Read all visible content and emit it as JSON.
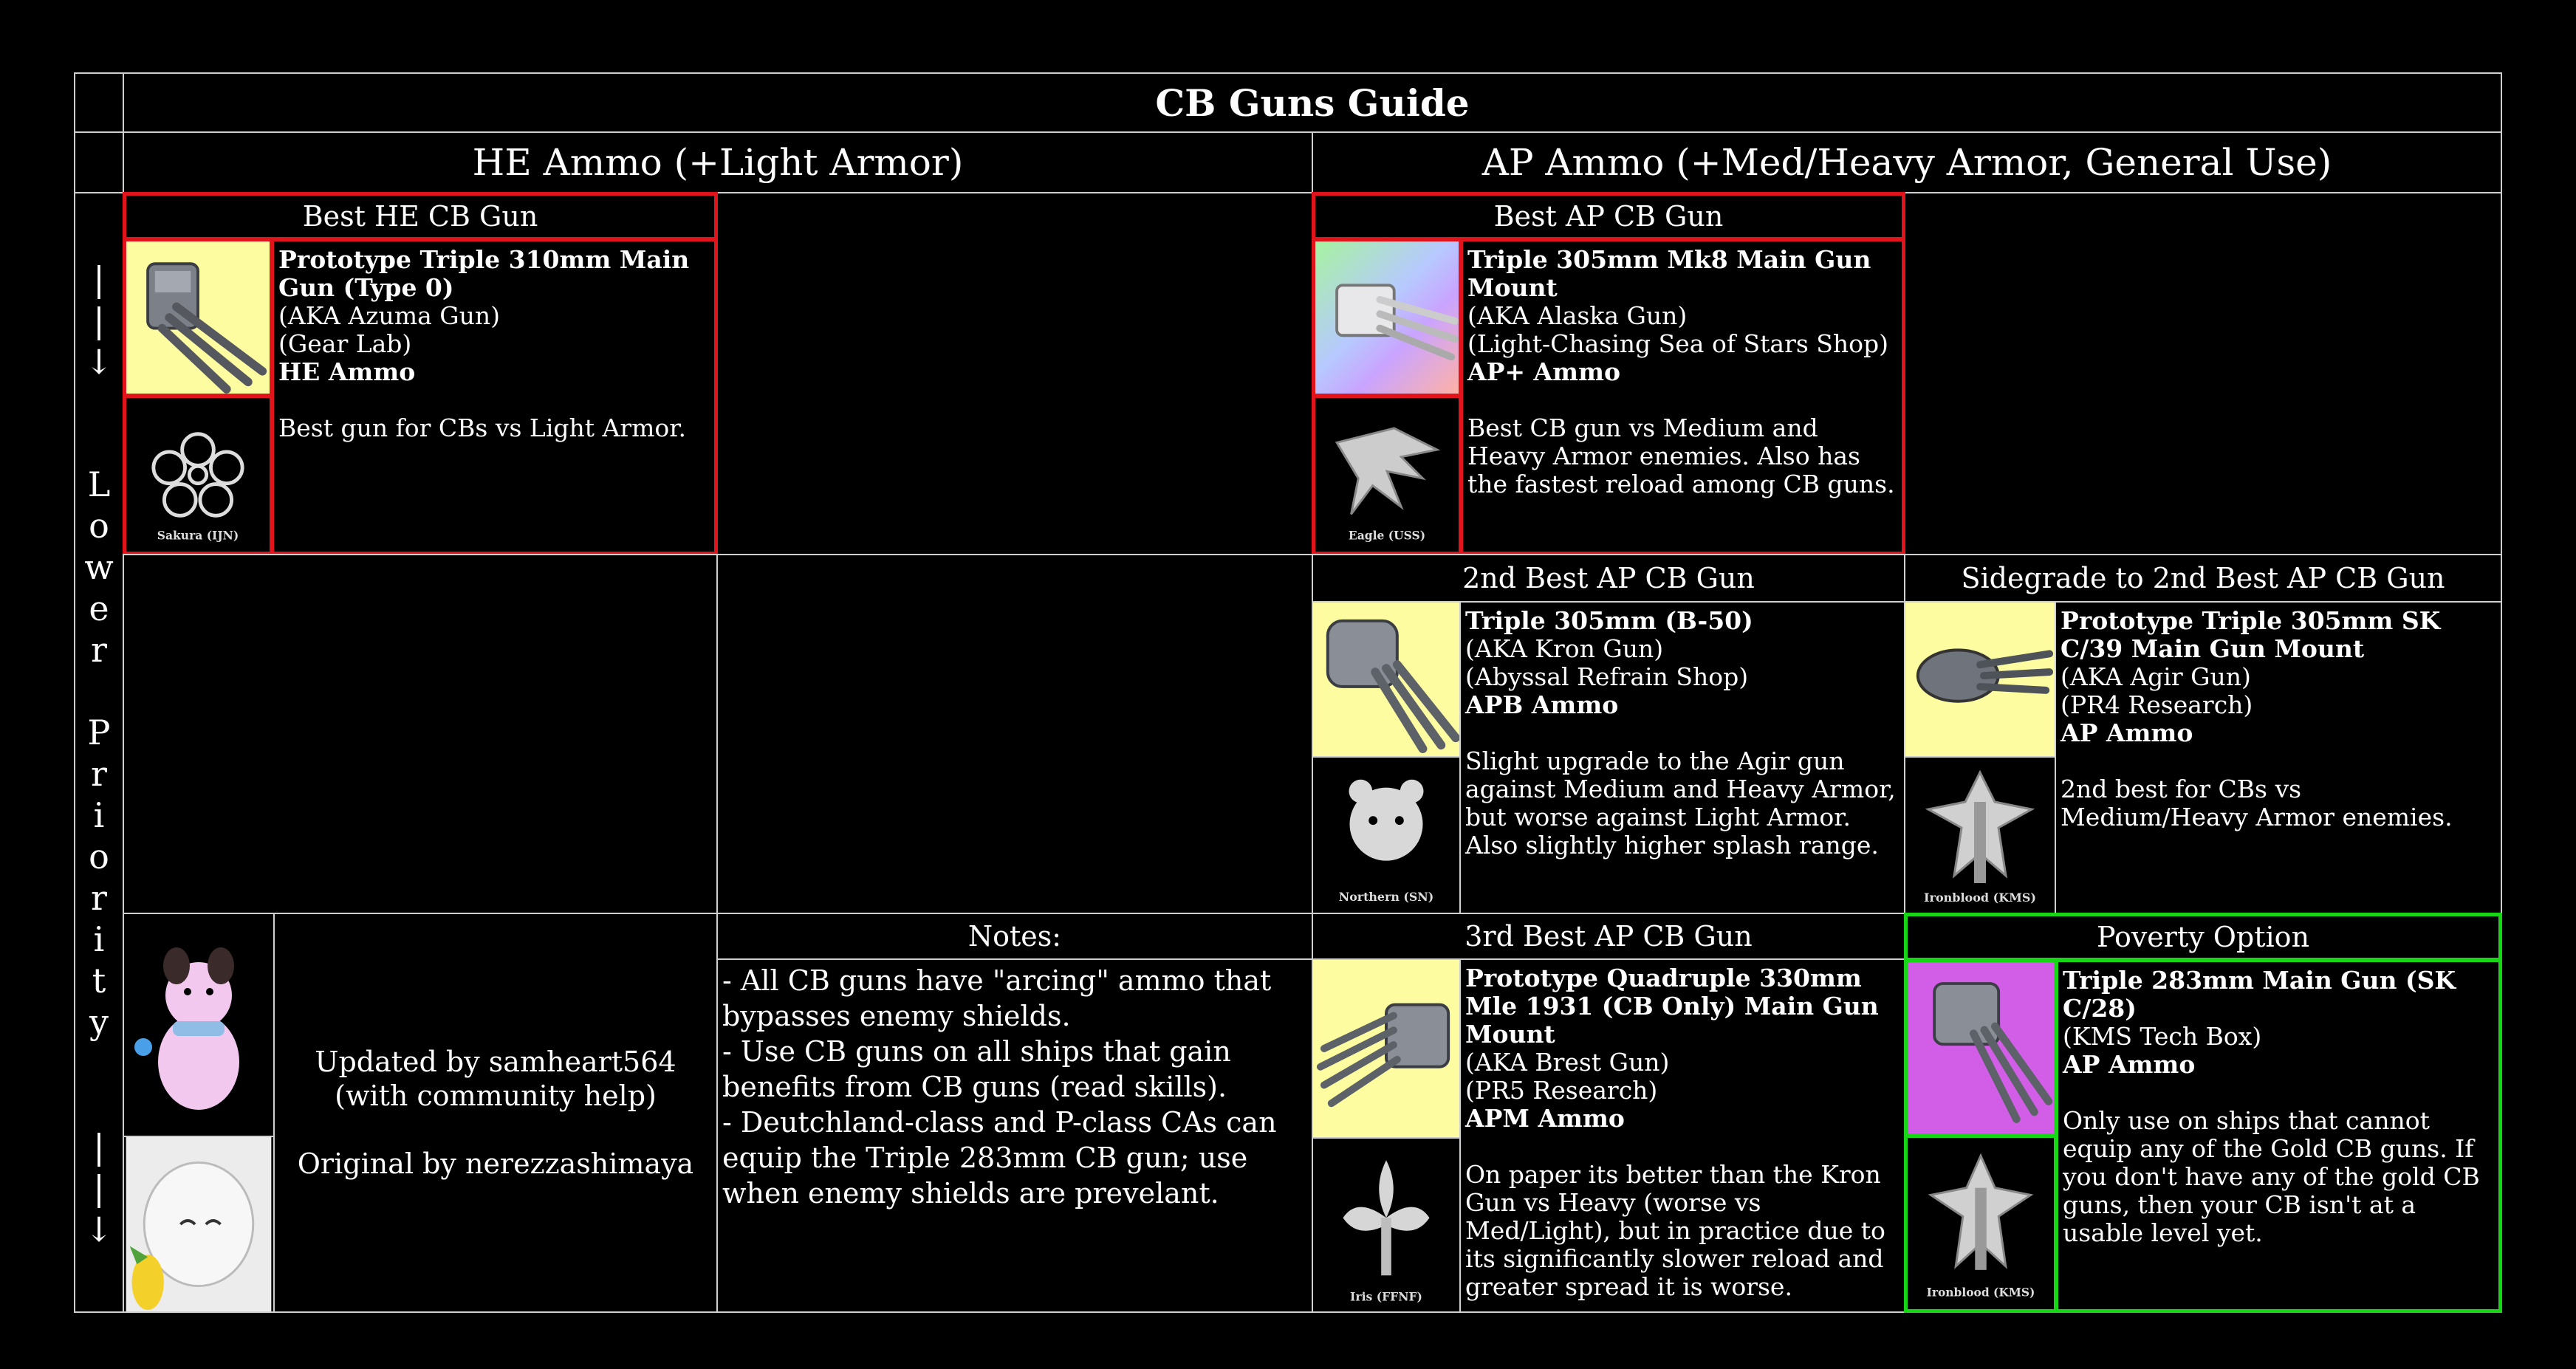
{
  "title": "CB Guns Guide",
  "he_header": "HE Ammo (+Light Armor)",
  "ap_header": "AP Ammo (+Med/Heavy Armor, General Use)",
  "priority": {
    "arrow": "|\n|\n↓",
    "letters": [
      "L",
      "o",
      "w",
      "e",
      "r",
      "",
      "P",
      "r",
      "i",
      "o",
      "r",
      "i",
      "t",
      "y"
    ]
  },
  "best_he": {
    "label": "Best HE CB Gun",
    "name": "Prototype Triple 310mm Main Gun (Type 0)",
    "aka": "(AKA Azuma Gun)",
    "source": "(Gear Lab)",
    "ammo": "HE Ammo",
    "note": "Best gun for CBs vs Light Armor.",
    "faction": "Sakura (IJN)",
    "gun_icon": "triple-gun-icon",
    "faction_icon": "sakura-emblem-icon"
  },
  "best_ap": {
    "label": "Best AP CB Gun",
    "name": "Triple 305mm Mk8 Main Gun Mount",
    "aka": "(AKA Alaska Gun)",
    "source": "(Light-Chasing Sea of Stars Shop)",
    "ammo": "AP+ Ammo",
    "note": "Best CB gun vs Medium and Heavy Armor enemies. Also has the fastest reload among CB guns.",
    "faction": "Eagle (USS)",
    "gun_icon": "triple-gun-icon",
    "faction_icon": "eagle-emblem-icon"
  },
  "second_ap": {
    "label": "2nd Best AP CB Gun",
    "name": "Triple 305mm (B-50)",
    "aka": "(AKA Kron Gun)",
    "source": "(Abyssal Refrain Shop)",
    "ammo": "APB Ammo",
    "note": "Slight upgrade to the Agir gun against Medium and Heavy Armor, but worse against Light Armor. Also slightly higher splash range.",
    "faction": "Northern (SN)",
    "gun_icon": "triple-gun-icon",
    "faction_icon": "bear-emblem-icon"
  },
  "sidegrade": {
    "label": "Sidegrade to 2nd Best AP CB Gun",
    "name": "Prototype Triple 305mm SK C/39 Main Gun Mount",
    "aka": "(AKA Agir Gun)",
    "source": "(PR4 Research)",
    "ammo": "AP Ammo",
    "note": "2nd best for CBs vs Medium/Heavy Armor enemies.",
    "faction": "Ironblood (KMS)",
    "gun_icon": "triple-gun-icon",
    "faction_icon": "iron-cross-emblem-icon"
  },
  "third_ap": {
    "label": "3rd Best AP CB Gun",
    "name": "Prototype Quadruple 330mm Mle 1931 (CB Only) Main Gun Mount",
    "aka": "(AKA Brest Gun)",
    "source": "(PR5 Research)",
    "ammo": "APM Ammo",
    "note": "On paper its better than the Kron Gun vs Heavy (worse vs Med/Light), but in practice due to its significantly slower reload and greater spread it is worse.",
    "faction": "Iris (FFNF)",
    "gun_icon": "quad-gun-icon",
    "faction_icon": "fleur-emblem-icon"
  },
  "poverty": {
    "label": "Poverty Option",
    "name": "Triple 283mm Main Gun (SK C/28)",
    "source": "(KMS Tech Box)",
    "ammo": "AP Ammo",
    "note": "Only use on ships that cannot equip any of the Gold CB guns. If you don't have any of the gold CB guns, then your CB isn't at a usable level yet.",
    "faction": "Ironblood (KMS)",
    "gun_icon": "triple-gun-icon",
    "faction_icon": "iron-cross-emblem-icon"
  },
  "credits": {
    "updated": "Updated by samheart564",
    "help": "(with community help)",
    "original": "Original by nerezzashimaya"
  },
  "notes": {
    "label": "Notes:",
    "lines": [
      "- All CB guns have \"arcing\" ammo that bypasses enemy shields.",
      "- Use CB guns on all ships that gain benefits from CB guns (read skills).",
      "- Deutchland-class and P-class CAs can equip the Triple 283mm CB gun; use when enemy shields are prevelant."
    ]
  },
  "colors": {
    "background": "#000000",
    "grid": "#cfcfcf",
    "highlight_best": "#e0141a",
    "highlight_poverty": "#16d616",
    "rarity_gold": "#fdfca0",
    "rarity_purple": "#d25ee8"
  }
}
